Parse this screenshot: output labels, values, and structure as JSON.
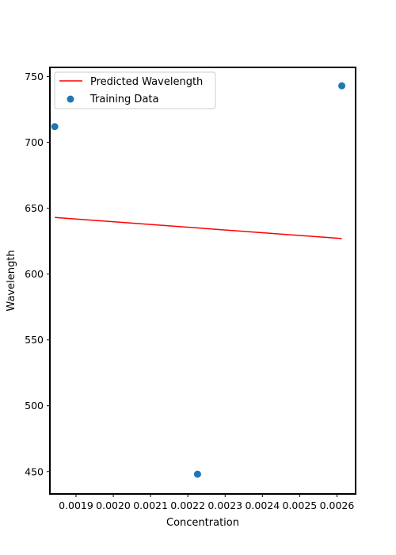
{
  "chart_data": {
    "type": "scatter",
    "title": "",
    "xlabel": "Concentration",
    "ylabel": "Wavelength",
    "xlim": [
      0.00183,
      0.00265
    ],
    "ylim": [
      433,
      757
    ],
    "x_ticks": [
      0.0019,
      0.002,
      0.0021,
      0.0022,
      0.0023,
      0.0024,
      0.0025,
      0.0026
    ],
    "x_tick_labels": [
      "0.0019",
      "0.0020",
      "0.0021",
      "0.0022",
      "0.0023",
      "0.0024",
      "0.0025",
      "0.0026"
    ],
    "y_ticks": [
      450,
      500,
      550,
      600,
      650,
      700,
      750
    ],
    "y_tick_labels": [
      "450",
      "500",
      "550",
      "600",
      "650",
      "700",
      "750"
    ],
    "grid": false,
    "legend_position": "top-left",
    "series": [
      {
        "name": "Predicted Wavelength",
        "kind": "line",
        "color": "#ff0000",
        "x": [
          0.001843,
          0.002613
        ],
        "y": [
          643,
          627
        ]
      },
      {
        "name": "Training Data",
        "kind": "scatter",
        "color": "#1f77b4",
        "x": [
          0.001843,
          0.002226,
          0.002613
        ],
        "y": [
          712,
          448,
          743
        ]
      }
    ]
  }
}
